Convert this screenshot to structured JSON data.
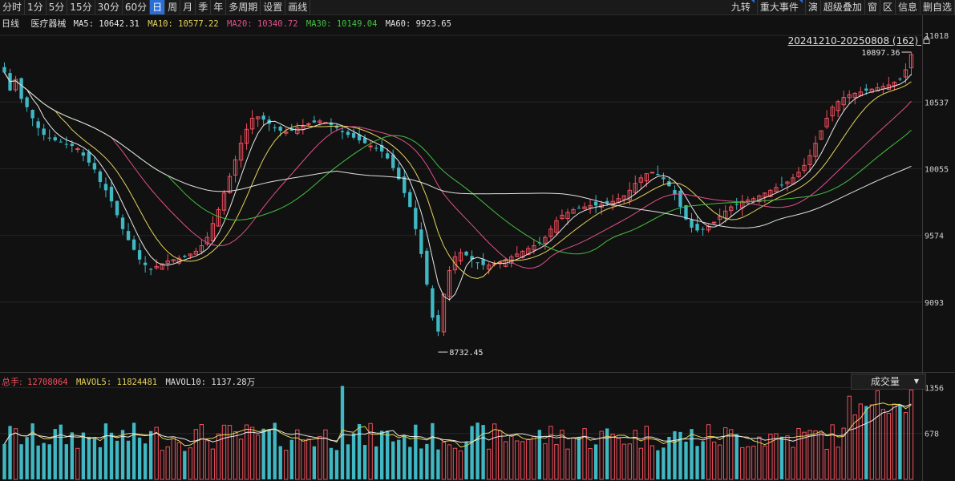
{
  "toolbar": {
    "left": [
      "分时",
      "1分",
      "5分",
      "15分",
      "30分",
      "60分",
      "日",
      "周",
      "月",
      "季",
      "年",
      "多周期",
      "设置",
      "画线"
    ],
    "active": "日",
    "right": [
      "九转",
      "重大事件",
      "演",
      "超级叠加",
      "窗",
      "区",
      "信息",
      "删自选"
    ]
  },
  "legend": {
    "period": "日线",
    "name": "医疗器械",
    "ma5_label": "MA5:",
    "ma5": "10642.31",
    "ma10_label": "MA10:",
    "ma10": "10577.22",
    "ma20_label": "MA20:",
    "ma20": "10340.72",
    "ma30_label": "MA30:",
    "ma30": "10149.04",
    "ma60_label": "MA60:",
    "ma60": "9923.65"
  },
  "range_label": "20241210-20250808 (162)",
  "lock_icon": "lock-icon",
  "annotations": {
    "high": "10897.36",
    "low": "8732.45"
  },
  "volume_legend": {
    "total_label": "总手:",
    "total": "12708064",
    "mavol5_label": "MAVOL5:",
    "mavol5": "11824481",
    "mavol10_label": "MAVOL10:",
    "mavol10": "1137.28万"
  },
  "volume_select": "成交量",
  "colors": {
    "up": "#f0505e",
    "down": "#3fb8c4",
    "ma5": "#e8e8e8",
    "ma10": "#e6d35a",
    "ma20": "#e0508c",
    "ma30": "#42c140",
    "ma60": "#e0e0e0",
    "bg": "#111111"
  },
  "chart_data": {
    "type": "candlestick",
    "price_axis": {
      "ticks": [
        11018,
        10537,
        10055,
        9574,
        9093
      ],
      "ylim": [
        8600,
        11100
      ]
    },
    "volume_axis": {
      "ticks": [
        1356,
        678
      ],
      "ylim": [
        0,
        1420
      ],
      "unit": "万"
    },
    "num_bars": 162,
    "closes_approx": [
      10750,
      10620,
      10700,
      10560,
      10500,
      10420,
      10350,
      10300,
      10280,
      10260,
      10250,
      10230,
      10220,
      10200,
      10150,
      10100,
      10050,
      9960,
      9900,
      9820,
      9720,
      9620,
      9540,
      9470,
      9400,
      9360,
      9330,
      9350,
      9370,
      9390,
      9400,
      9410,
      9420,
      9440,
      9460,
      9500,
      9560,
      9660,
      9760,
      9880,
      10000,
      10120,
      10240,
      10340,
      10420,
      10430,
      10410,
      10380,
      10350,
      10330,
      10320,
      10330,
      10350,
      10360,
      10380,
      10390,
      10400,
      10390,
      10370,
      10350,
      10320,
      10300,
      10280,
      10260,
      10240,
      10220,
      10200,
      10180,
      10130,
      10060,
      9980,
      9880,
      9780,
      9620,
      9440,
      9220,
      8980,
      8880,
      9150,
      9320,
      9420,
      9450,
      9430,
      9400,
      9380,
      9360,
      9360,
      9370,
      9380,
      9400,
      9420,
      9440,
      9460,
      9480,
      9500,
      9520,
      9560,
      9620,
      9680,
      9720,
      9740,
      9760,
      9770,
      9780,
      9790,
      9790,
      9800,
      9810,
      9820,
      9840,
      9860,
      9900,
      9950,
      9990,
      10020,
      10030,
      10010,
      9980,
      9930,
      9870,
      9780,
      9690,
      9630,
      9610,
      9620,
      9640,
      9670,
      9710,
      9750,
      9780,
      9800,
      9820,
      9830,
      9840,
      9860,
      9880,
      9900,
      9920,
      9940,
      9960,
      9990,
      10030,
      10080,
      10150,
      10240,
      10330,
      10420,
      10500,
      10540,
      10570,
      10590,
      10600,
      10610,
      10620,
      10630,
      10640,
      10650,
      10660,
      10680,
      10700,
      10770,
      10880
    ]
  }
}
